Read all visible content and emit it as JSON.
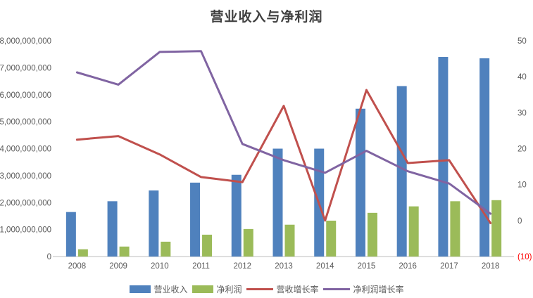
{
  "title": "营业收入与净利润",
  "colors": {
    "revenue_bar": "#4F81BD",
    "profit_bar": "#9BBB59",
    "revenue_growth_line": "#C0504D",
    "profit_growth_line": "#8064A2",
    "axis_text": "#595959",
    "axis_line": "#C9C9C9",
    "title_text": "#3f3f3f",
    "negative_tick": "#FF0000",
    "background": "#FFFFFF"
  },
  "chart_data": {
    "type": "bar",
    "subtype": "clustered bars with two overlay lines (dual axis combo)",
    "title": "营业收入与净利润",
    "categories": [
      "2008",
      "2009",
      "2010",
      "2011",
      "2012",
      "2013",
      "2014",
      "2015",
      "2016",
      "2017",
      "2018"
    ],
    "series": [
      {
        "name": "营业收入",
        "type": "bar",
        "axis": "left",
        "color": "#4F81BD",
        "values": [
          1650000000,
          2050000000,
          2450000000,
          2740000000,
          3030000000,
          4000000000,
          4000000000,
          5480000000,
          6320000000,
          7400000000,
          7350000000
        ]
      },
      {
        "name": "净利润",
        "type": "bar",
        "axis": "left",
        "color": "#9BBB59",
        "values": [
          270000000,
          370000000,
          550000000,
          810000000,
          1020000000,
          1180000000,
          1330000000,
          1620000000,
          1860000000,
          2050000000,
          2090000000
        ]
      },
      {
        "name": "营收增长率",
        "type": "line",
        "axis": "right",
        "color": "#C0504D",
        "values": [
          22.5,
          23.5,
          18.4,
          12.1,
          10.7,
          31.9,
          0,
          36.3,
          16,
          16.8,
          -0.7
        ]
      },
      {
        "name": "净利润增长率",
        "type": "line",
        "axis": "right",
        "color": "#8064A2",
        "values": [
          41.2,
          37.8,
          46.9,
          47.1,
          21.3,
          16.8,
          13.3,
          19.4,
          13.7,
          10.3,
          1.9
        ]
      }
    ],
    "left_axis": {
      "min": 0,
      "max": 8000000000,
      "step": 1000000000,
      "tick_values": [
        0,
        1000000000,
        2000000000,
        3000000000,
        4000000000,
        5000000000,
        6000000000,
        7000000000,
        8000000000
      ],
      "tick_labels": [
        "0",
        "1,000,000,000",
        "2,000,000,000",
        "3,000,000,000",
        "4,000,000,000",
        "5,000,000,000",
        "6,000,000,000",
        "7,000,000,000",
        "8,000,000,000"
      ]
    },
    "right_axis": {
      "min": -10,
      "max": 50,
      "step": 10,
      "tick_values": [
        -10,
        0,
        10,
        20,
        30,
        40,
        50
      ],
      "tick_labels": [
        "(10)",
        "0",
        "10",
        "20",
        "30",
        "40",
        "50"
      ],
      "negative_label": "(10)"
    },
    "grid": false,
    "legend_position": "bottom"
  }
}
